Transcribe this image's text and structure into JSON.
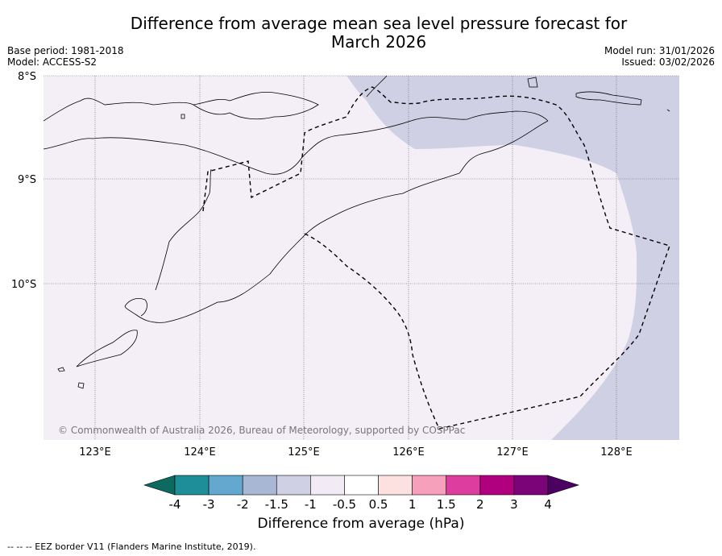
{
  "title_line1": "Difference from average mean sea level pressure forecast for",
  "title_line2": "March 2026",
  "meta_left": {
    "base_period": "Base period: 1981-2018",
    "model": "Model: ACCESS-S2"
  },
  "meta_right": {
    "model_run": "Model run: 31/01/2026",
    "issued": "Issued: 03/02/2026"
  },
  "latitudes": [
    "8°S",
    "9°S",
    "10°S"
  ],
  "longitudes": [
    "123°E",
    "124°E",
    "125°E",
    "126°E",
    "127°E",
    "128°E"
  ],
  "copyright": "© Commonwealth of Australia 2026, Bureau of Meteorology, supported by COSPPac",
  "colorbar": {
    "title": "Difference from average (hPa)",
    "tick_labels": [
      "-4",
      "-3",
      "-2",
      "-1.5",
      "-1",
      "-0.5",
      "0.5",
      "1",
      "1.5",
      "2",
      "3",
      "4"
    ],
    "colors": [
      "#0c6a60",
      "#1e8f98",
      "#65a8cf",
      "#a8b8d4",
      "#d0d0e4",
      "#f2eaf4",
      "#ffffff",
      "#fde0e0",
      "#f6a0bc",
      "#dd3d9e",
      "#b0007f",
      "#7c0479",
      "#4b0062"
    ]
  },
  "map_colors": {
    "near_avg_low": "#f4eef6",
    "below_avg": "#d0d0e4"
  },
  "footer": "--  --  -- EEZ border V11 (Flanders Marine Institute, 2019)."
}
